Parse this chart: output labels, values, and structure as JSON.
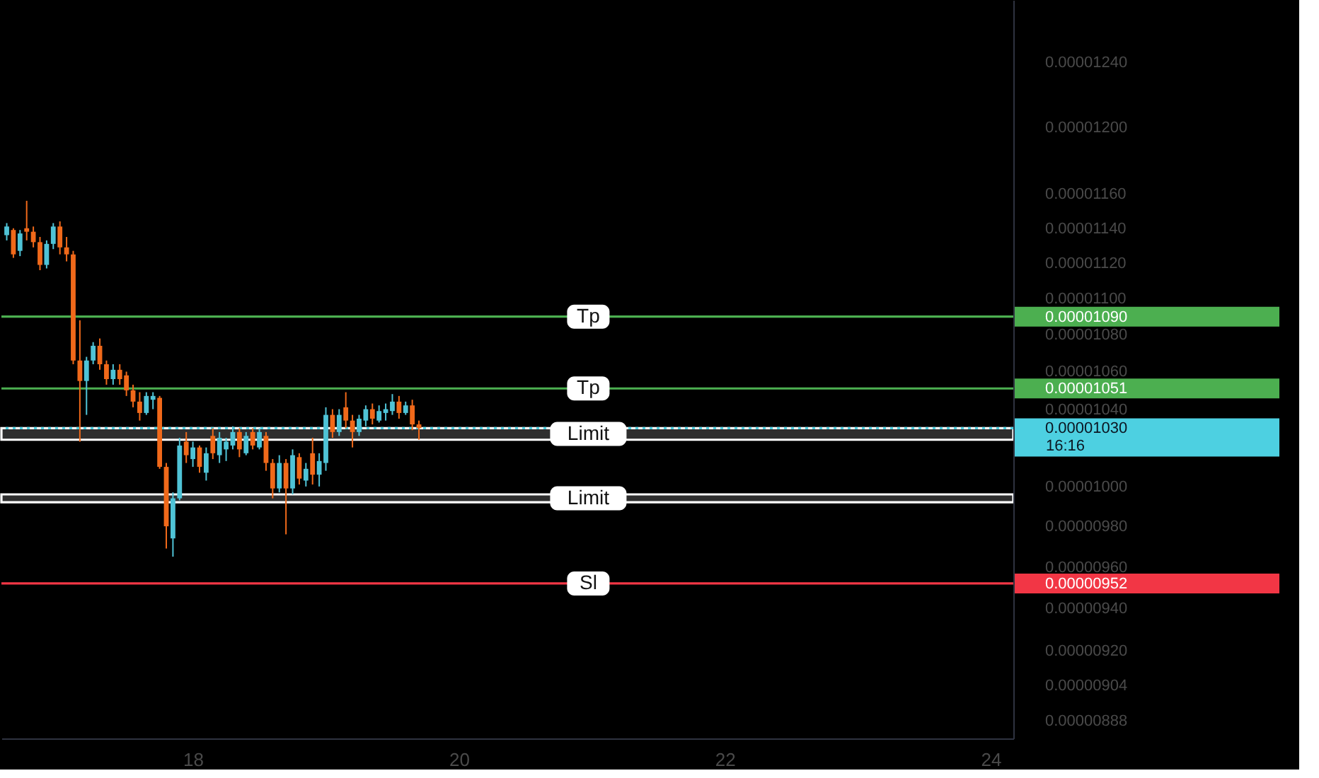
{
  "chart_data": {
    "type": "candlestick",
    "x": [
      16.6,
      16.65,
      16.7,
      16.75,
      16.8,
      16.85,
      16.9,
      16.95,
      17.0,
      17.05,
      17.1,
      17.15,
      17.2,
      17.25,
      17.3,
      17.35,
      17.4,
      17.45,
      17.5,
      17.55,
      17.6,
      17.65,
      17.7,
      17.75,
      17.8,
      17.85,
      17.9,
      17.95,
      18.0,
      18.05,
      18.1,
      18.15,
      18.2,
      18.25,
      18.3,
      18.35,
      18.4,
      18.45,
      18.5,
      18.55,
      18.6,
      18.65,
      18.7,
      18.75,
      18.8,
      18.85,
      18.9,
      18.95,
      19.0,
      19.05,
      19.1,
      19.15,
      19.2,
      19.25,
      19.3,
      19.35,
      19.4,
      19.45,
      19.5,
      19.55,
      19.6,
      19.65,
      19.7
    ],
    "ohlc": [
      [
        1.136e-05,
        1.143e-05,
        1.133e-05,
        1.141e-05
      ],
      [
        1.139e-05,
        1.14e-05,
        1.123e-05,
        1.125e-05
      ],
      [
        1.127e-05,
        1.139e-05,
        1.124e-05,
        1.137e-05
      ],
      [
        1.14e-05,
        1.156e-05,
        1.133e-05,
        1.138e-05
      ],
      [
        1.138e-05,
        1.141e-05,
        1.129e-05,
        1.132e-05
      ],
      [
        1.132e-05,
        1.135e-05,
        1.116e-05,
        1.119e-05
      ],
      [
        1.119e-05,
        1.133e-05,
        1.117e-05,
        1.131e-05
      ],
      [
        1.131e-05,
        1.143e-05,
        1.128e-05,
        1.141e-05
      ],
      [
        1.141e-05,
        1.144e-05,
        1.125e-05,
        1.129e-05
      ],
      [
        1.129e-05,
        1.135e-05,
        1.121e-05,
        1.125e-05
      ],
      [
        1.125e-05,
        1.127e-05,
        1.064e-05,
        1.066e-05
      ],
      [
        1.066e-05,
        1.088e-05,
        1.023e-05,
        1.055e-05
      ],
      [
        1.055e-05,
        1.068e-05,
        1.037e-05,
        1.066e-05
      ],
      [
        1.066e-05,
        1.076e-05,
        1.064e-05,
        1.074e-05
      ],
      [
        1.074e-05,
        1.078e-05,
        1.061e-05,
        1.064e-05
      ],
      [
        1.064e-05,
        1.066e-05,
        1.053e-05,
        1.056e-05
      ],
      [
        1.056e-05,
        1.064e-05,
        1.053e-05,
        1.061e-05
      ],
      [
        1.061e-05,
        1.064e-05,
        1.053e-05,
        1.056e-05
      ],
      [
        1.058e-05,
        1.06e-05,
        1.047e-05,
        1.05e-05
      ],
      [
        1.05e-05,
        1.053e-05,
        1.041e-05,
        1.044e-05
      ],
      [
        1.044e-05,
        1.049e-05,
        1.034e-05,
        1.038e-05
      ],
      [
        1.038e-05,
        1.049e-05,
        1.037e-05,
        1.047e-05
      ],
      [
        1.045e-05,
        1.049e-05,
        1.04e-05,
        1.047e-05
      ],
      [
        1.046e-05,
        1.047e-05,
        1.009e-05,
        1.01e-05
      ],
      [
        1.01e-05,
        1.012e-05,
        9.69e-06,
        9.8e-06
      ],
      [
        9.74e-06,
        9.97e-06,
        9.65e-06,
        9.94e-06
      ],
      [
        9.94e-06,
        1.025e-05,
        9.93e-06,
        1.021e-05
      ],
      [
        1.023e-05,
        1.028e-05,
        1.012e-05,
        1.016e-05
      ],
      [
        1.014e-05,
        1.023e-05,
        1.01e-05,
        1.02e-05
      ],
      [
        1.02e-05,
        1.021e-05,
        1.007e-05,
        1.01e-05
      ],
      [
        1.007e-05,
        1.02e-05,
        1.003e-05,
        1.017e-05
      ],
      [
        1.026e-05,
        1.03e-05,
        1.014e-05,
        1.017e-05
      ],
      [
        1.016e-05,
        1.028e-05,
        1.012e-05,
        1.025e-05
      ],
      [
        1.019e-05,
        1.025e-05,
        1.013e-05,
        1.023e-05
      ],
      [
        1.021e-05,
        1.031e-05,
        1.019e-05,
        1.028e-05
      ],
      [
        1.028e-05,
        1.03e-05,
        1.015e-05,
        1.019e-05
      ],
      [
        1.017e-05,
        1.028e-05,
        1.016e-05,
        1.026e-05
      ],
      [
        1.028e-05,
        1.03e-05,
        1.019e-05,
        1.021e-05
      ],
      [
        1.02e-05,
        1.03e-05,
        1.019e-05,
        1.028e-05
      ],
      [
        1.026e-05,
        1.028e-05,
        1.008e-05,
        1.012e-05
      ],
      [
        1.012e-05,
        1.014e-05,
        9.94e-06,
        9.99e-06
      ],
      [
        9.99e-06,
        1.016e-05,
        9.97e-06,
        1.012e-05
      ],
      [
        1.012e-05,
        1.014e-05,
        9.76e-06,
        9.99e-06
      ],
      [
        9.99e-06,
        1.019e-05,
        9.96e-06,
        1.016e-05
      ],
      [
        1.015e-05,
        1.017e-05,
        1.001e-05,
        1.004e-05
      ],
      [
        1.003e-05,
        1.012e-05,
        1e-05,
        1.009e-05
      ],
      [
        1.017e-05,
        1.025e-05,
        1.001e-05,
        1.006e-05
      ],
      [
        1.006e-05,
        1.017e-05,
        1e-05,
        1.013e-05
      ],
      [
        1.012e-05,
        1.041e-05,
        1.008e-05,
        1.037e-05
      ],
      [
        1.037e-05,
        1.04e-05,
        1.025e-05,
        1.028e-05
      ],
      [
        1.028e-05,
        1.04e-05,
        1.026e-05,
        1.037e-05
      ],
      [
        1.041e-05,
        1.049e-05,
        1.03e-05,
        1.034e-05
      ],
      [
        1.034e-05,
        1.037e-05,
        1.02e-05,
        1.028e-05
      ],
      [
        1.028e-05,
        1.037e-05,
        1.026e-05,
        1.035e-05
      ],
      [
        1.034e-05,
        1.042e-05,
        1.031e-05,
        1.04e-05
      ],
      [
        1.04e-05,
        1.043e-05,
        1.032e-05,
        1.035e-05
      ],
      [
        1.034e-05,
        1.042e-05,
        1.033e-05,
        1.039e-05
      ],
      [
        1.038e-05,
        1.043e-05,
        1.034e-05,
        1.04e-05
      ],
      [
        1.039e-05,
        1.048e-05,
        1.037e-05,
        1.044e-05
      ],
      [
        1.044e-05,
        1.047e-05,
        1.035e-05,
        1.038e-05
      ],
      [
        1.038e-05,
        1.044e-05,
        1.037e-05,
        1.042e-05
      ],
      [
        1.042e-05,
        1.045e-05,
        1.029e-05,
        1.032e-05
      ],
      [
        1.032e-05,
        1.034e-05,
        1.024e-05,
        1.03e-05
      ]
    ],
    "colors": [
      "#4fc3d6",
      "#f0691a",
      "#4fc3d6",
      "#f0691a",
      "#f0691a",
      "#f0691a",
      "#4fc3d6",
      "#4fc3d6",
      "#f0691a",
      "#f0691a",
      "#f0691a",
      "#f0691a",
      "#4fc3d6",
      "#4fc3d6",
      "#f0691a",
      "#f0691a",
      "#4fc3d6",
      "#f0691a",
      "#f0691a",
      "#f0691a",
      "#f0691a",
      "#4fc3d6",
      "#4fc3d6",
      "#f0691a",
      "#f0691a",
      "#4fc3d6",
      "#4fc3d6",
      "#f0691a",
      "#4fc3d6",
      "#f0691a",
      "#4fc3d6",
      "#f0691a",
      "#4fc3d6",
      "#4fc3d6",
      "#4fc3d6",
      "#f0691a",
      "#4fc3d6",
      "#f0691a",
      "#4fc3d6",
      "#f0691a",
      "#f0691a",
      "#4fc3d6",
      "#f0691a",
      "#4fc3d6",
      "#f0691a",
      "#4fc3d6",
      "#f0691a",
      "#4fc3d6",
      "#4fc3d6",
      "#f0691a",
      "#4fc3d6",
      "#f0691a",
      "#f0691a",
      "#4fc3d6",
      "#4fc3d6",
      "#f0691a",
      "#4fc3d6",
      "#4fc3d6",
      "#4fc3d6",
      "#f0691a",
      "#4fc3d6",
      "#f0691a",
      "#f0691a"
    ],
    "xlim": [
      16.56,
      24.17
    ],
    "xticks": [
      18,
      20,
      22,
      24
    ],
    "ylim": [
      8.8e-06,
      1.28e-05
    ],
    "yticks": [
      {
        "value": 1.24e-05,
        "label": "0.00001240"
      },
      {
        "value": 1.2e-05,
        "label": "0.00001200"
      },
      {
        "value": 1.16e-05,
        "label": "0.00001160"
      },
      {
        "value": 1.14e-05,
        "label": "0.00001140"
      },
      {
        "value": 1.12e-05,
        "label": "0.00001120"
      },
      {
        "value": 1.1e-05,
        "label": "0.00001100"
      },
      {
        "value": 1.09e-05,
        "label": "0.00001090"
      },
      {
        "value": 1.08e-05,
        "label": "0.00001080"
      },
      {
        "value": 1.06e-05,
        "label": "0.00001060"
      },
      {
        "value": 1.051e-05,
        "label": "0.00001051"
      },
      {
        "value": 1.04e-05,
        "label": "0.00001040"
      },
      {
        "value": 1.03e-05,
        "label": "0.00001030"
      },
      {
        "value": 1e-05,
        "label": "0.00001000"
      },
      {
        "value": 9.8e-06,
        "label": "0.00000980"
      },
      {
        "value": 9.6e-06,
        "label": "0.00000960"
      },
      {
        "value": 9.52e-06,
        "label": "0.00000952"
      },
      {
        "value": 9.4e-06,
        "label": "0.00000940"
      },
      {
        "value": 9.2e-06,
        "label": "0.00000920"
      },
      {
        "value": 9.04e-06,
        "label": "0.00000904"
      },
      {
        "value": 8.88e-06,
        "label": "0.00000888"
      }
    ],
    "log": true,
    "ref_lines": [
      {
        "axis": "y",
        "value": 1.09e-05,
        "label": "Tp",
        "color": "#4caf50"
      },
      {
        "axis": "y",
        "value": 1.051e-05,
        "label": "Tp",
        "color": "#4caf50"
      },
      {
        "axis": "y",
        "value": 1.03e-05,
        "color": "#4dd0e1",
        "line_style": "dotted"
      },
      {
        "axis": "y",
        "value": 9.52e-06,
        "label": "Sl",
        "color": "#f23645"
      }
    ],
    "bands": [
      {
        "axis": "y",
        "from": 1.024e-05,
        "to": 1.03e-05,
        "label": "Limit",
        "color": "#ffffff"
      },
      {
        "axis": "y",
        "from": 9.92e-06,
        "to": 9.96e-06,
        "label": "Limit",
        "color": "#ffffff"
      }
    ],
    "annotations": [
      "16:16"
    ]
  }
}
